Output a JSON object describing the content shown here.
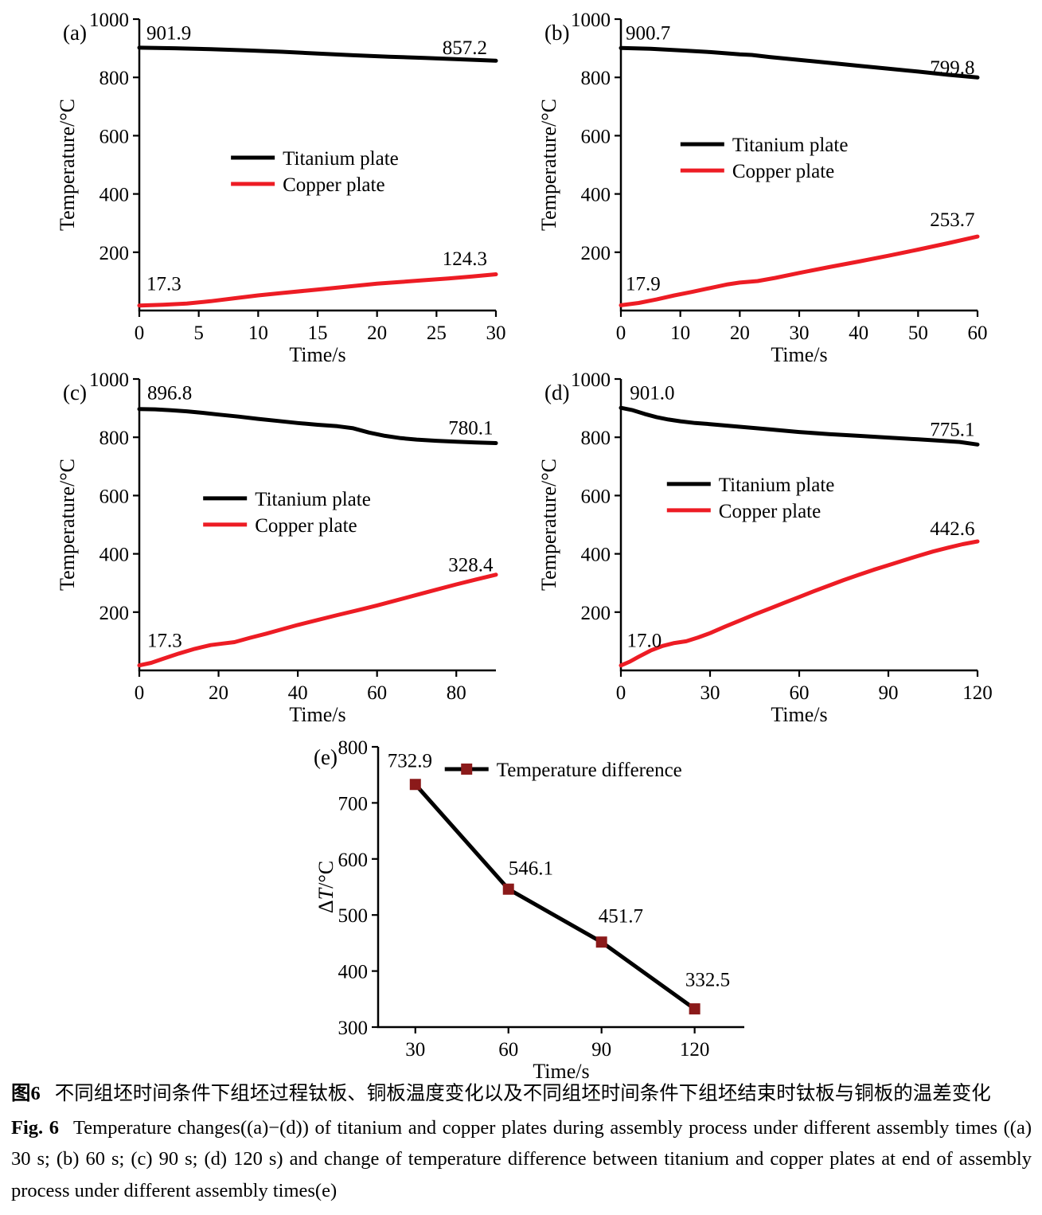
{
  "colors": {
    "titanium": "#000000",
    "copper": "#ed1c24",
    "diff_line": "#000000",
    "diff_marker": "#8b1a1a"
  },
  "caption": {
    "zh_label": "图6",
    "zh_text": "不同组坯时间条件下组坯过程钛板、铜板温度变化以及不同组坯时间条件下组坯结束时钛板与铜板的温差变化",
    "en_label": "Fig. 6",
    "en_text": "Temperature changes((a)−(d)) of titanium and copper plates during assembly process under different assembly times ((a) 30 s; (b) 60 s; (c) 90 s; (d) 120 s) and change of temperature difference between titanium and copper plates at end of assembly process under different assembly times(e)"
  },
  "chart_data": [
    {
      "id": "a",
      "panel_label": "(a)",
      "type": "line",
      "xlabel": "Time/s",
      "ylabel": "Temperature/°C",
      "xlim": [
        0,
        30
      ],
      "ylim": [
        0,
        1000
      ],
      "xticks": [
        0,
        5,
        10,
        15,
        20,
        25,
        30
      ],
      "yticks": [
        200,
        400,
        600,
        800,
        1000
      ],
      "legend": {
        "fx": 0.257,
        "fy": 0.5,
        "position": "center-left"
      },
      "series": [
        {
          "name": "Titanium plate",
          "color": "#000000",
          "points": [
            [
              0,
              901.9
            ],
            [
              3,
              900
            ],
            [
              6,
              897
            ],
            [
              9,
              893
            ],
            [
              12,
              888
            ],
            [
              15,
              882
            ],
            [
              18,
              876
            ],
            [
              21,
              871
            ],
            [
              24,
              867
            ],
            [
              27,
              862
            ],
            [
              30,
              857.2
            ]
          ]
        },
        {
          "name": "Copper plate",
          "color": "#ed1c24",
          "points": [
            [
              0,
              17.3
            ],
            [
              2,
              20
            ],
            [
              4,
              24
            ],
            [
              6,
              32
            ],
            [
              8,
              42
            ],
            [
              10,
              52
            ],
            [
              12,
              60
            ],
            [
              14,
              68
            ],
            [
              16,
              76
            ],
            [
              18,
              84
            ],
            [
              20,
              92
            ],
            [
              22,
              98
            ],
            [
              24,
              104
            ],
            [
              26,
              110
            ],
            [
              28,
              117
            ],
            [
              30,
              124.3
            ]
          ]
        }
      ],
      "annotations": [
        {
          "text": "901.9",
          "x": 0.6,
          "y": 930
        },
        {
          "text": "857.2",
          "x": 25.5,
          "y": 880
        },
        {
          "text": "17.3",
          "x": 0.6,
          "y": 70
        },
        {
          "text": "124.3",
          "x": 25.5,
          "y": 156
        }
      ]
    },
    {
      "id": "b",
      "panel_label": "(b)",
      "type": "line",
      "xlabel": "Time/s",
      "ylabel": "Temperature/°C",
      "xlim": [
        0,
        60
      ],
      "ylim": [
        0,
        1000
      ],
      "xticks": [
        0,
        10,
        20,
        30,
        40,
        50,
        60
      ],
      "yticks": [
        200,
        400,
        600,
        800,
        1000
      ],
      "legend": {
        "fx": 0.167,
        "fy": 0.454,
        "position": "center-left"
      },
      "series": [
        {
          "name": "Titanium plate",
          "color": "#000000",
          "points": [
            [
              0,
              900.7
            ],
            [
              5,
              898
            ],
            [
              10,
              893
            ],
            [
              15,
              887
            ],
            [
              20,
              879
            ],
            [
              22,
              877
            ],
            [
              25,
              870
            ],
            [
              30,
              860
            ],
            [
              35,
              850
            ],
            [
              40,
              840
            ],
            [
              45,
              830
            ],
            [
              50,
              820
            ],
            [
              55,
              809
            ],
            [
              60,
              799.8
            ]
          ]
        },
        {
          "name": "Copper plate",
          "color": "#ed1c24",
          "points": [
            [
              0,
              17.9
            ],
            [
              3,
              26
            ],
            [
              6,
              38
            ],
            [
              9,
              52
            ],
            [
              12,
              64
            ],
            [
              15,
              77
            ],
            [
              18,
              90
            ],
            [
              20,
              96
            ],
            [
              23,
              101
            ],
            [
              26,
              112
            ],
            [
              30,
              129
            ],
            [
              35,
              149
            ],
            [
              40,
              168
            ],
            [
              45,
              188
            ],
            [
              50,
              209
            ],
            [
              55,
              231
            ],
            [
              60,
              253.7
            ]
          ]
        }
      ],
      "annotations": [
        {
          "text": "900.7",
          "x": 0.8,
          "y": 930
        },
        {
          "text": "799.8",
          "x": 52,
          "y": 812
        },
        {
          "text": "17.9",
          "x": 0.8,
          "y": 70
        },
        {
          "text": "253.7",
          "x": 52,
          "y": 290
        }
      ]
    },
    {
      "id": "c",
      "panel_label": "(c)",
      "type": "line",
      "xlabel": "Time/s",
      "ylabel": "Temperature/°C",
      "xlim": [
        0,
        90
      ],
      "ylim": [
        0,
        1000
      ],
      "xticks": [
        0,
        20,
        40,
        60,
        80
      ],
      "yticks": [
        200,
        400,
        600,
        800,
        1000
      ],
      "legend": {
        "fx": 0.179,
        "fy": 0.434,
        "position": "center-left"
      },
      "series": [
        {
          "name": "Titanium plate",
          "color": "#000000",
          "points": [
            [
              0,
              896.8
            ],
            [
              4,
              896
            ],
            [
              8,
              893
            ],
            [
              12,
              889
            ],
            [
              16,
              884
            ],
            [
              20,
              878
            ],
            [
              25,
              871
            ],
            [
              30,
              863
            ],
            [
              35,
              856
            ],
            [
              40,
              849
            ],
            [
              45,
              843
            ],
            [
              50,
              838
            ],
            [
              54,
              831
            ],
            [
              58,
              816
            ],
            [
              62,
              805
            ],
            [
              66,
              797
            ],
            [
              70,
              792
            ],
            [
              75,
              788
            ],
            [
              80,
              785
            ],
            [
              85,
              782
            ],
            [
              90,
              780.1
            ]
          ]
        },
        {
          "name": "Copper plate",
          "color": "#ed1c24",
          "points": [
            [
              0,
              17.3
            ],
            [
              3,
              26
            ],
            [
              6,
              40
            ],
            [
              10,
              58
            ],
            [
              14,
              74
            ],
            [
              18,
              87
            ],
            [
              21,
              92
            ],
            [
              24,
              97
            ],
            [
              28,
              112
            ],
            [
              32,
              126
            ],
            [
              36,
              141
            ],
            [
              40,
              156
            ],
            [
              45,
              173
            ],
            [
              50,
              190
            ],
            [
              55,
              206
            ],
            [
              60,
              223
            ],
            [
              65,
              241
            ],
            [
              70,
              259
            ],
            [
              75,
              277
            ],
            [
              80,
              295
            ],
            [
              85,
              312
            ],
            [
              90,
              328.4
            ]
          ]
        }
      ],
      "annotations": [
        {
          "text": "896.8",
          "x": 2,
          "y": 930
        },
        {
          "text": "780.1",
          "x": 78,
          "y": 810
        },
        {
          "text": "17.3",
          "x": 2,
          "y": 80
        },
        {
          "text": "328.4",
          "x": 78,
          "y": 340
        }
      ]
    },
    {
      "id": "d",
      "panel_label": "(d)",
      "type": "line",
      "xlabel": "Time/s",
      "ylabel": "Temperature/°C",
      "xlim": [
        0,
        120
      ],
      "ylim": [
        0,
        1000
      ],
      "xticks": [
        0,
        30,
        60,
        90,
        120
      ],
      "yticks": [
        200,
        400,
        600,
        800,
        1000
      ],
      "legend": {
        "fx": 0.129,
        "fy": 0.385,
        "position": "center-left"
      },
      "series": [
        {
          "name": "Titanium plate",
          "color": "#000000",
          "points": [
            [
              0,
              901.0
            ],
            [
              4,
              893
            ],
            [
              8,
              880
            ],
            [
              12,
              869
            ],
            [
              16,
              861
            ],
            [
              20,
              855
            ],
            [
              25,
              849
            ],
            [
              30,
              845
            ],
            [
              40,
              836
            ],
            [
              50,
              827
            ],
            [
              60,
              818
            ],
            [
              70,
              811
            ],
            [
              80,
              805
            ],
            [
              90,
              799
            ],
            [
              100,
              793
            ],
            [
              108,
              788
            ],
            [
              114,
              784
            ],
            [
              120,
              775.1
            ]
          ]
        },
        {
          "name": "Copper plate",
          "color": "#ed1c24",
          "points": [
            [
              0,
              17.0
            ],
            [
              3,
              30
            ],
            [
              6,
              47
            ],
            [
              10,
              68
            ],
            [
              14,
              84
            ],
            [
              18,
              94
            ],
            [
              22,
              100
            ],
            [
              26,
              113
            ],
            [
              30,
              128
            ],
            [
              35,
              150
            ],
            [
              40,
              171
            ],
            [
              45,
              192
            ],
            [
              50,
              212
            ],
            [
              55,
              232
            ],
            [
              60,
              252
            ],
            [
              65,
              272
            ],
            [
              70,
              291
            ],
            [
              75,
              310
            ],
            [
              80,
              328
            ],
            [
              85,
              345
            ],
            [
              90,
              361
            ],
            [
              95,
              377
            ],
            [
              100,
              393
            ],
            [
              105,
              408
            ],
            [
              110,
              421
            ],
            [
              115,
              433
            ],
            [
              120,
              442.6
            ]
          ]
        }
      ],
      "annotations": [
        {
          "text": "901.0",
          "x": 3,
          "y": 930
        },
        {
          "text": "775.1",
          "x": 104,
          "y": 805
        },
        {
          "text": "17.0",
          "x": 2,
          "y": 80
        },
        {
          "text": "442.6",
          "x": 104,
          "y": 465
        }
      ]
    },
    {
      "id": "e",
      "panel_label": "(e)",
      "type": "line",
      "xlabel": "Time/s",
      "ylabel": "ΔT/°C",
      "ylabel_parts": [
        {
          "t": "Δ"
        },
        {
          "t": "T",
          "italic": true
        },
        {
          "t": "/°C"
        }
      ],
      "xlim": [
        18,
        136
      ],
      "ylim": [
        300,
        800
      ],
      "xticks": [
        30,
        60,
        90,
        120
      ],
      "yticks": [
        300,
        400,
        500,
        600,
        700,
        800
      ],
      "legend": {
        "fx": 0.182,
        "fy": 0.105,
        "position": "top-center"
      },
      "series": [
        {
          "name": "Temperature difference",
          "color": "#000000",
          "marker": "square",
          "marker_color": "#8b1a1a",
          "points": [
            [
              30,
              732.9
            ],
            [
              60,
              546.1
            ],
            [
              90,
              451.7
            ],
            [
              120,
              332.5
            ]
          ]
        }
      ],
      "annotations": [
        {
          "text": "732.9",
          "x": 21,
          "y": 764
        },
        {
          "text": "546.1",
          "x": 60,
          "y": 572
        },
        {
          "text": "451.7",
          "x": 89,
          "y": 487
        },
        {
          "text": "332.5",
          "x": 117,
          "y": 373
        }
      ]
    }
  ]
}
